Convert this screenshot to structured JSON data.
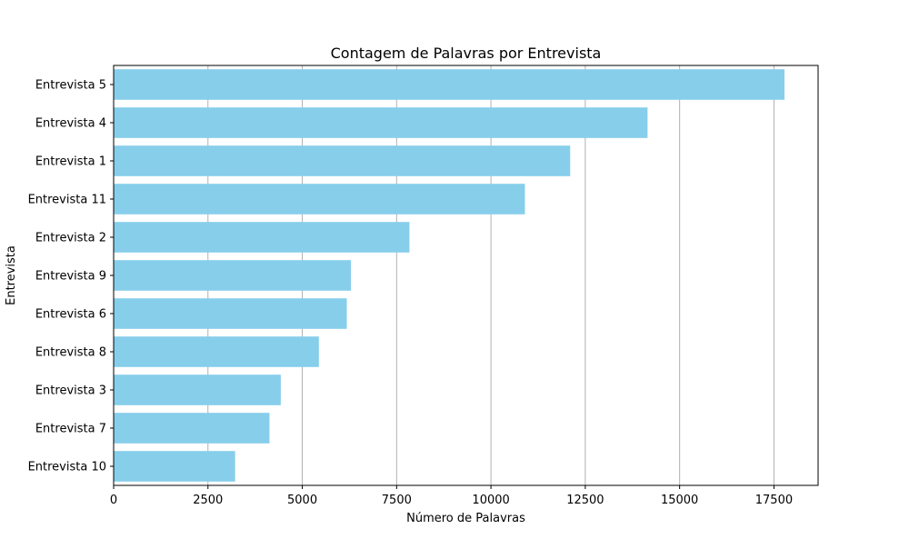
{
  "chart_data": {
    "type": "bar",
    "orientation": "horizontal",
    "title": "Contagem de Palavras por Entrevista",
    "xlabel": "Número de Palavras",
    "ylabel": "Entrevista",
    "categories": [
      "Entrevista 10",
      "Entrevista 7",
      "Entrevista 3",
      "Entrevista 8",
      "Entrevista 6",
      "Entrevista 9",
      "Entrevista 2 ",
      "Entrevista 11",
      "Entrevista 1",
      "Entrevista 4",
      "Entrevista 5"
    ],
    "values": [
      3220,
      4130,
      4430,
      5440,
      6180,
      6290,
      7840,
      10900,
      12100,
      14150,
      17780
    ],
    "xlim": [
      0,
      18670
    ],
    "xticks": [
      0,
      2500,
      5000,
      7500,
      10000,
      12500,
      15000,
      17500
    ],
    "grid": "x-major",
    "bar_color": "#87ceeb",
    "grid_color": "#b0b0b0"
  }
}
